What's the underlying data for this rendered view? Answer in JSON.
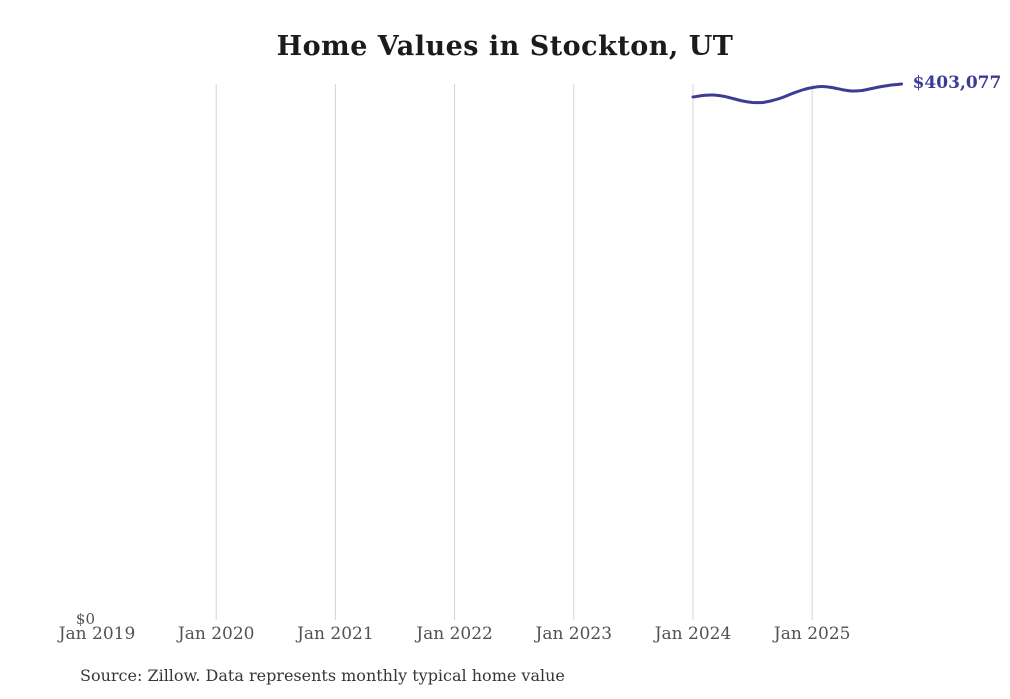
{
  "source_note": "Source: Zillow. Data represents monthly typical home value",
  "chart_data": {
    "type": "line",
    "title": "Home Values in Stockton, UT",
    "xlabel": "",
    "ylabel": "",
    "grid": "vertical-only",
    "legend": "none",
    "x_ticks": [
      "Jan 2019",
      "Jan 2020",
      "Jan 2021",
      "Jan 2022",
      "Jan 2023",
      "Jan 2024",
      "Jan 2025"
    ],
    "y_axis": {
      "min": 0,
      "max": 403077,
      "min_label": "$0"
    },
    "end_label": "$403,077",
    "series": [
      {
        "name": "Monthly typical home value",
        "color": "#3d3b96",
        "months": [
          "2024-01",
          "2024-02",
          "2024-03",
          "2024-04",
          "2024-05",
          "2024-06",
          "2024-07",
          "2024-08",
          "2024-09",
          "2024-10",
          "2024-11",
          "2024-12",
          "2025-01",
          "2025-02",
          "2025-03",
          "2025-04",
          "2025-05",
          "2025-06",
          "2025-07",
          "2025-08",
          "2025-09",
          "2025-10"
        ],
        "values": [
          393300,
          394400,
          394800,
          394000,
          392200,
          390300,
          389200,
          389200,
          390700,
          392900,
          395900,
          398600,
          400400,
          401200,
          400400,
          398900,
          397800,
          398200,
          399700,
          401200,
          402300,
          403077
        ]
      }
    ]
  }
}
